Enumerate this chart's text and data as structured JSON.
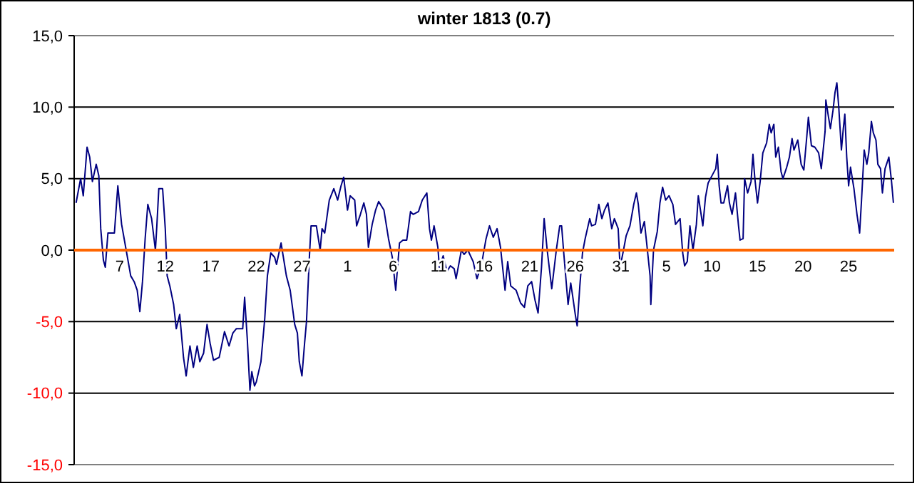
{
  "chart_data": {
    "type": "line",
    "title": "winter 1813 (0.7)",
    "x": [
      "1812-12-02T05:00",
      "1812-12-02T17:00",
      "1812-12-03T00:00",
      "1812-12-03T10:00",
      "1812-12-03T17:00",
      "1812-12-04T00:00",
      "1812-12-04T10:00",
      "1812-12-04T17:00",
      "1812-12-04T22:00",
      "1812-12-05T05:00",
      "1812-12-05T10:00",
      "1812-12-05T17:00",
      "1812-12-06T02:00",
      "1812-12-06T10:00",
      "1812-12-06T19:00",
      "1812-12-07T05:00",
      "1812-12-07T17:00",
      "1812-12-08T05:00",
      "1812-12-08T14:00",
      "1812-12-08T22:00",
      "1812-12-09T05:00",
      "1812-12-09T12:00",
      "1812-12-09T19:00",
      "1812-12-10T02:00",
      "1812-12-10T12:00",
      "1812-12-10T22:00",
      "1812-12-11T02:00",
      "1812-12-11T07:00",
      "1812-12-11T17:00",
      "1812-12-12T00:00",
      "1812-12-12T05:00",
      "1812-12-12T12:00",
      "1812-12-12T22:00",
      "1812-12-13T05:00",
      "1812-12-13T14:00",
      "1812-12-14T00:00",
      "1812-12-14T07:00",
      "1812-12-14T17:00",
      "1812-12-15T02:00",
      "1812-12-15T12:00",
      "1812-12-15T19:00",
      "1812-12-16T05:00",
      "1812-12-16T14:00",
      "1812-12-16T22:00",
      "1812-12-17T07:00",
      "1812-12-17T22:00",
      "1812-12-18T12:00",
      "1812-12-19T00:00",
      "1812-12-19T10:00",
      "1812-12-19T19:00",
      "1812-12-20T12:00",
      "1812-12-20T17:00",
      "1812-12-21T00:00",
      "1812-12-21T07:00",
      "1812-12-21T12:00",
      "1812-12-21T19:00",
      "1812-12-22T00:00",
      "1812-12-22T12:00",
      "1812-12-22T22:00",
      "1812-12-23T05:00",
      "1812-12-23T14:00",
      "1812-12-24T00:00",
      "1812-12-24T05:00",
      "1812-12-24T17:00",
      "1812-12-25T07:00",
      "1812-12-25T17:00",
      "1812-12-26T05:00",
      "1812-12-26T12:00",
      "1812-12-26T17:00",
      "1812-12-27T00:00",
      "1812-12-27T07:00",
      "1812-12-27T12:00",
      "1812-12-27T19:00",
      "1812-12-28T00:00",
      "1812-12-28T14:00",
      "1812-12-29T00:00",
      "1812-12-29T05:00",
      "1812-12-29T12:00",
      "1812-12-30T00:00",
      "1812-12-30T12:00",
      "1812-12-30T22:00",
      "1812-12-31T07:00",
      "1812-12-31T14:00",
      "1813-01-01T00:00",
      "1813-01-01T07:00",
      "1813-01-01T19:00",
      "1813-01-02T00:00",
      "1813-01-02T10:00",
      "1813-01-02T19:00",
      "1813-01-03T02:00",
      "1813-01-03T07:00",
      "1813-01-03T17:00",
      "1813-01-04T02:00",
      "1813-01-04T10:00",
      "1813-01-05T00:00",
      "1813-01-05T12:00",
      "1813-01-05T22:00",
      "1813-01-06T07:00",
      "1813-01-06T17:00",
      "1813-01-07T02:00",
      "1813-01-07T12:00",
      "1813-01-07T22:00",
      "1813-01-08T05:00",
      "1813-01-08T19:00",
      "1813-01-09T05:00",
      "1813-01-09T17:00",
      "1813-01-10T00:00",
      "1813-01-10T05:00",
      "1813-01-10T12:00",
      "1813-01-10T22:00",
      "1813-01-11T02:00",
      "1813-01-11T12:00",
      "1813-01-11T22:00",
      "1813-01-12T07:00",
      "1813-01-12T17:00",
      "1813-01-12T22:00",
      "1813-01-13T12:00",
      "1813-01-13T19:00",
      "1813-01-14T05:00",
      "1813-01-14T19:00",
      "1813-01-15T05:00",
      "1813-01-15T17:00",
      "1813-01-16T05:00",
      "1813-01-16T14:00",
      "1813-01-17T00:00",
      "1813-01-17T10:00",
      "1813-01-17T19:00",
      "1813-01-18T07:00",
      "1813-01-18T14:00",
      "1813-01-18T22:00",
      "1813-01-19T12:00",
      "1813-01-20T00:00",
      "1813-01-20T10:00",
      "1813-01-20T19:00",
      "1813-01-21T05:00",
      "1813-01-21T14:00",
      "1813-01-21T22:00",
      "1813-01-22T07:00",
      "1813-01-22T14:00",
      "1813-01-22T22:00",
      "1813-01-23T10:00",
      "1813-01-23T22:00",
      "1813-01-24T07:00",
      "1813-01-24T12:00",
      "1813-01-24T17:00",
      "1813-01-25T05:00",
      "1813-01-25T12:00",
      "1813-01-25T17:00",
      "1813-01-26T00:00",
      "1813-01-26T05:00",
      "1813-01-26T12:00",
      "1813-01-26T19:00",
      "1813-01-27T02:00",
      "1813-01-27T14:00",
      "1813-01-27T19:00",
      "1813-01-28T05:00",
      "1813-01-28T14:00",
      "1813-01-28T22:00",
      "1813-01-29T05:00",
      "1813-01-29T14:00",
      "1813-01-30T00:00",
      "1813-01-30T07:00",
      "1813-01-30T17:00",
      "1813-01-30T22:00",
      "1813-01-31T07:00",
      "1813-01-31T14:00",
      "1813-02-01T00:00",
      "1813-02-01T10:00",
      "1813-02-01T17:00",
      "1813-02-01T22:00",
      "1813-02-02T05:00",
      "1813-02-02T14:00",
      "1813-02-02T22:00",
      "1813-02-03T05:00",
      "1813-02-03T07:00",
      "1813-02-03T14:00",
      "1813-02-04T00:00",
      "1813-02-04T07:00",
      "1813-02-04T14:00",
      "1813-02-04T22:00",
      "1813-02-05T07:00",
      "1813-02-05T17:00",
      "1813-02-06T00:00",
      "1813-02-06T12:00",
      "1813-02-06T19:00",
      "1813-02-07T00:00",
      "1813-02-07T07:00",
      "1813-02-07T14:00",
      "1813-02-07T22:00",
      "1813-02-08T07:00",
      "1813-02-08T12:00",
      "1813-02-09T00:00",
      "1813-02-09T07:00",
      "1813-02-09T14:00",
      "1813-02-10T00:00",
      "1813-02-10T10:00",
      "1813-02-10T14:00",
      "1813-02-10T19:00",
      "1813-02-11T00:00",
      "1813-02-11T07:00",
      "1813-02-11T17:00",
      "1813-02-11T22:00",
      "1813-02-12T05:00",
      "1813-02-12T14:00",
      "1813-02-12T22:00",
      "1813-02-13T02:00",
      "1813-02-13T10:00",
      "1813-02-13T14:00",
      "1813-02-13T22:00",
      "1813-02-14T07:00",
      "1813-02-14T12:00",
      "1813-02-14T17:00",
      "1813-02-15T00:00",
      "1813-02-15T07:00",
      "1813-02-15T14:00",
      "1813-02-16T00:00",
      "1813-02-16T07:00",
      "1813-02-16T12:00",
      "1813-02-16T19:00",
      "1813-02-17T00:00",
      "1813-02-17T07:00",
      "1813-02-17T14:00",
      "1813-02-17T19:00",
      "1813-02-18T05:00",
      "1813-02-18T12:00",
      "1813-02-18T19:00",
      "1813-02-19T00:00",
      "1813-02-19T10:00",
      "1813-02-19T19:00",
      "1813-02-20T02:00",
      "1813-02-20T10:00",
      "1813-02-20T14:00",
      "1813-02-20T22:00",
      "1813-02-21T07:00",
      "1813-02-21T17:00",
      "1813-02-22T00:00",
      "1813-02-22T10:00",
      "1813-02-22T12:00",
      "1813-02-22T19:00",
      "1813-02-23T00:00",
      "1813-02-23T07:00",
      "1813-02-23T12:00",
      "1813-02-23T17:00",
      "1813-02-23T22:00",
      "1813-02-24T05:00",
      "1813-02-24T10:00",
      "1813-02-24T14:00",
      "1813-02-24T19:00",
      "1813-02-25T00:00",
      "1813-02-25T05:00",
      "1813-02-25T14:00",
      "1813-02-25T22:00",
      "1813-02-26T05:00",
      "1813-02-26T10:00",
      "1813-02-26T17:00",
      "1813-02-27T00:00",
      "1813-02-27T05:00",
      "1813-02-27T12:00",
      "1813-02-27T17:00",
      "1813-02-28T00:00",
      "1813-02-28T05:00",
      "1813-02-28T12:00",
      "1813-02-28T17:00",
      "1813-03-01T00:00",
      "1813-03-01T10:00",
      "1813-03-01T17:00",
      "1813-03-01T22:00"
    ],
    "series": [
      {
        "color": "#000080",
        "values": [
          3.3,
          5,
          3.8,
          7.2,
          6.5,
          4.8,
          6,
          5.2,
          1.5,
          -0.7,
          -1.2,
          1.2,
          1.2,
          1.2,
          4.5,
          1.8,
          0,
          -1.8,
          -2.2,
          -2.8,
          -4.3,
          -2.2,
          0.8,
          3.2,
          2.2,
          0,
          1.8,
          4.3,
          4.3,
          1.5,
          -1.8,
          -2.5,
          -3.8,
          -5.5,
          -4.5,
          -7.5,
          -8.8,
          -6.7,
          -8.2,
          -6.7,
          -7.8,
          -7.2,
          -5.2,
          -6.5,
          -7.7,
          -7.5,
          -5.7,
          -6.7,
          -5.8,
          -5.5,
          -5.5,
          -3.3,
          -6.2,
          -9.8,
          -8.5,
          -9.5,
          -9.2,
          -7.8,
          -4.8,
          -1.8,
          -0.2,
          -0.5,
          -1,
          0.5,
          -1.8,
          -2.8,
          -5.2,
          -5.8,
          -7.8,
          -8.8,
          -6.5,
          -5,
          -0.8,
          1.7,
          1.7,
          0,
          1.5,
          1.2,
          3.5,
          4.3,
          3.5,
          4.5,
          5.1,
          2.8,
          3.8,
          3.5,
          1.7,
          2.5,
          3.3,
          2.5,
          0.2,
          1.8,
          2.8,
          3.4,
          2.8,
          0.8,
          -0.5,
          -2.8,
          0.5,
          0.7,
          0.7,
          2.7,
          2.5,
          2.7,
          3.5,
          4,
          1.5,
          0.7,
          1.7,
          0.2,
          -1.2,
          -0.4,
          -1.5,
          -1.1,
          -1.3,
          -2,
          0,
          -0.3,
          0,
          -0.8,
          -2,
          -1,
          0.8,
          1.7,
          0.9,
          1.5,
          0.2,
          -2.8,
          -0.8,
          -2.5,
          -2.8,
          -3.7,
          -4,
          -2.5,
          -2.2,
          -3.5,
          -4.4,
          -1.2,
          2.2,
          0,
          -2.7,
          0,
          1.7,
          1.7,
          0,
          -3.8,
          -2.3,
          -3.2,
          -4.5,
          -5.3,
          -2.5,
          -0.2,
          0.8,
          2.2,
          1.7,
          1.8,
          3.2,
          2.2,
          2.8,
          3.3,
          1.5,
          2.2,
          1.5,
          -1.2,
          0,
          1,
          1.7,
          3.2,
          4,
          3.2,
          1.2,
          2,
          0,
          -1.8,
          -3.8,
          0,
          1.3,
          3.3,
          4.4,
          3.5,
          3.8,
          3.2,
          1.8,
          2.2,
          -0.2,
          -1.1,
          -0.8,
          1.7,
          0,
          1.8,
          3.8,
          1.7,
          3.7,
          4.7,
          5.2,
          5.7,
          6.7,
          4.5,
          3.3,
          3.3,
          4.5,
          3.3,
          2.5,
          4,
          1.7,
          0.7,
          0.8,
          5,
          4,
          4.8,
          6.7,
          5,
          3.3,
          4.8,
          6.8,
          7.5,
          8.8,
          8.2,
          8.8,
          6.5,
          7.2,
          5.5,
          5,
          5.8,
          6.5,
          7.8,
          7,
          7.7,
          6,
          5.6,
          8,
          9.3,
          7.3,
          7.2,
          6.8,
          5.7,
          8.3,
          10.5,
          9.3,
          8.5,
          9.8,
          11,
          11.7,
          10,
          7,
          8.5,
          9.5,
          6.5,
          4.5,
          5.8,
          4.3,
          2.5,
          1.2,
          3.5,
          7,
          6,
          6.8,
          9,
          8.2,
          7.7,
          6,
          5.7,
          4,
          5.7,
          6.5,
          4.8,
          3.3
        ]
      }
    ],
    "xlim": [
      "1812-12-02",
      "1813-03-02"
    ],
    "xticks": [
      {
        "value": "1812-12-07",
        "label": "7"
      },
      {
        "value": "1812-12-12",
        "label": "12"
      },
      {
        "value": "1812-12-17",
        "label": "17"
      },
      {
        "value": "1812-12-22",
        "label": "22"
      },
      {
        "value": "1812-12-27",
        "label": "27"
      },
      {
        "value": "1813-01-01",
        "label": "1"
      },
      {
        "value": "1813-01-06",
        "label": "6"
      },
      {
        "value": "1813-01-11",
        "label": "11"
      },
      {
        "value": "1813-01-16",
        "label": "16"
      },
      {
        "value": "1813-01-21",
        "label": "21"
      },
      {
        "value": "1813-01-26",
        "label": "26"
      },
      {
        "value": "1813-01-31",
        "label": "31"
      },
      {
        "value": "1813-02-05",
        "label": "5"
      },
      {
        "value": "1813-02-10",
        "label": "10"
      },
      {
        "value": "1813-02-15",
        "label": "15"
      },
      {
        "value": "1813-02-20",
        "label": "20"
      },
      {
        "value": "1813-02-25",
        "label": "25"
      }
    ],
    "ylim": [
      -15,
      15
    ],
    "yticks": [
      {
        "value": -15,
        "label": "-15,0"
      },
      {
        "value": -10,
        "label": "-10,0"
      },
      {
        "value": -5,
        "label": "-5,0"
      },
      {
        "value": 0,
        "label": "0,0"
      },
      {
        "value": 5,
        "label": "5,0"
      },
      {
        "value": 10,
        "label": "10,0"
      },
      {
        "value": 15,
        "label": "15,0"
      }
    ],
    "grid": "y"
  }
}
